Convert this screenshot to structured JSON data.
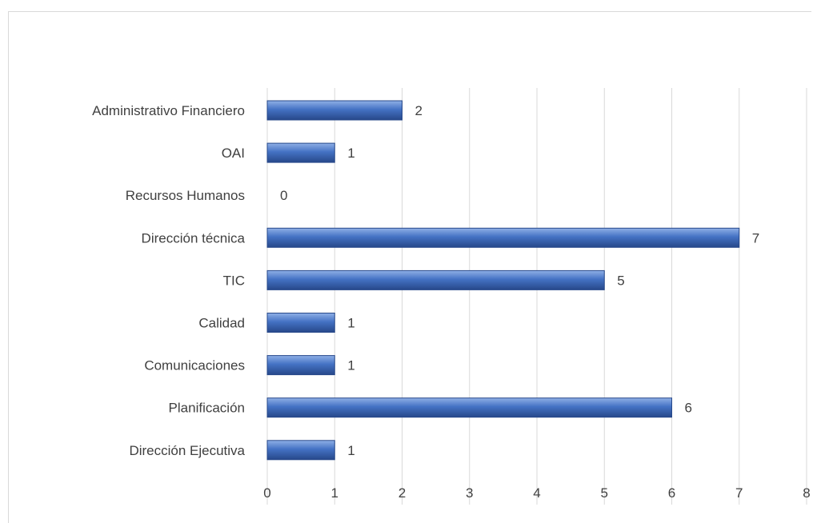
{
  "chart_data": {
    "type": "bar",
    "orientation": "horizontal",
    "categories": [
      "Administrativo Financiero",
      "OAI",
      "Recursos Humanos",
      "Dirección técnica",
      "TIC",
      "Calidad",
      "Comunicaciones",
      "Planificación",
      "Dirección Ejecutiva"
    ],
    "values": [
      2,
      1,
      0,
      7,
      5,
      1,
      1,
      6,
      1
    ],
    "xticks": [
      0,
      1,
      2,
      3,
      4,
      5,
      6,
      7,
      8
    ],
    "xlim": [
      0,
      8
    ],
    "title": "",
    "xlabel": "",
    "ylabel": "",
    "grid": "vertical",
    "data_labels": true,
    "legend": "none",
    "bar_color": "#4472c4",
    "bar_color_light": "#8fb0e6",
    "bar_color_dark": "#27488a",
    "gridline_color": "#d9d9d9",
    "text_color": "#404040"
  }
}
